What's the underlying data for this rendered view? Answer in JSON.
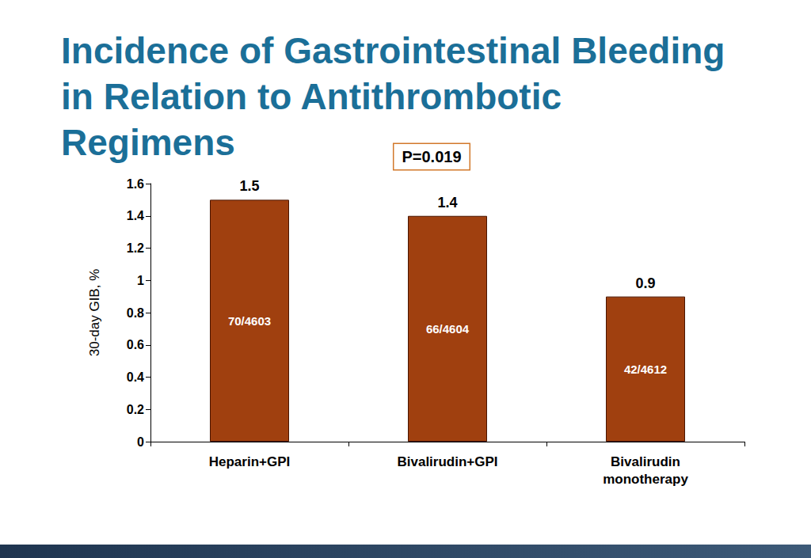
{
  "chart_data": {
    "type": "bar",
    "title": "Incidence of Gastrointestinal Bleeding in Relation to Antithrombotic Regimens",
    "y_label": "30-day GIB, %",
    "annotation": "P=0.019",
    "categories": [
      "Heparin+GPI",
      "Bivalirudin+GPI",
      "Bivalirudin monotherapy"
    ],
    "values": [
      1.5,
      1.4,
      0.9
    ],
    "counts": [
      "70/4603",
      "66/4604",
      "42/4612"
    ],
    "color": "#a0400f",
    "ylim": [
      0,
      1.6
    ],
    "yticks": [
      0,
      0.2,
      0.4,
      0.6,
      0.8,
      1,
      1.2,
      1.4,
      1.6
    ],
    "grid": false,
    "data_labels": true
  }
}
